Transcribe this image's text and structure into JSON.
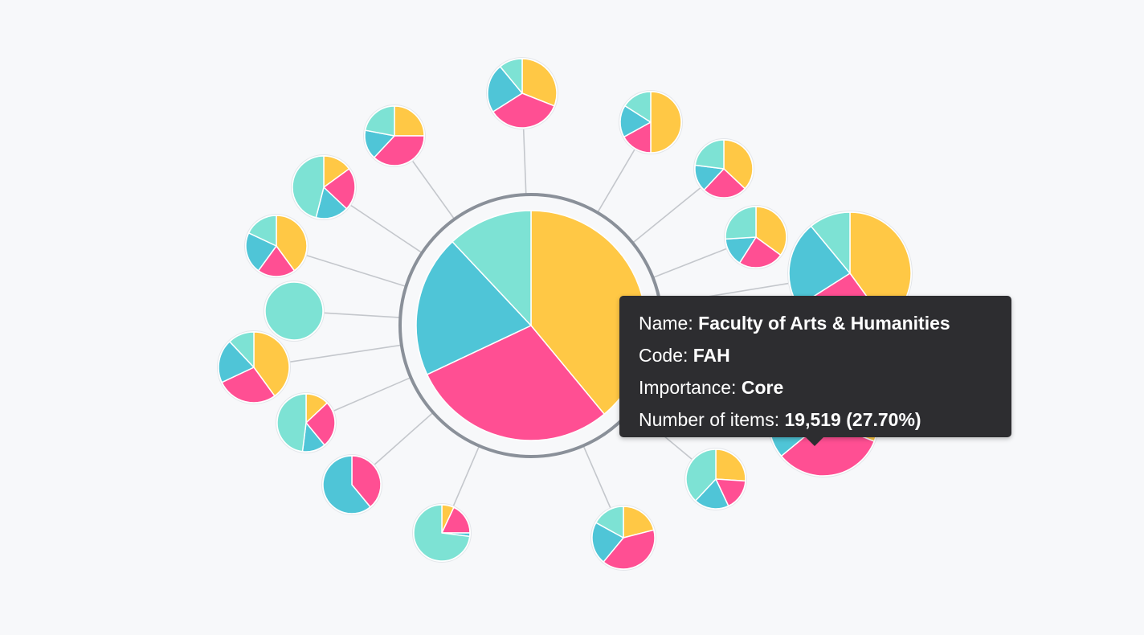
{
  "colors": {
    "yellow": "#ffc845",
    "pink": "#ff4f93",
    "blue": "#4fc5d7",
    "teal": "#7de2d4",
    "link": "#c4c7cc",
    "ring": "#8a9099",
    "tooltip_bg": "#2d2d30"
  },
  "chart_data": {
    "type": "pie",
    "series_order": [
      "yellow",
      "pink",
      "blue",
      "teal"
    ],
    "central": {
      "values": [
        39,
        29,
        20,
        12
      ]
    },
    "satellites": [
      {
        "values": [
          31,
          35,
          23,
          11
        ]
      },
      {
        "values": [
          50,
          17,
          17,
          16
        ]
      },
      {
        "values": [
          37,
          25,
          15,
          23
        ]
      },
      {
        "values": [
          35,
          24,
          15,
          26
        ]
      },
      {
        "values": [
          40,
          26,
          23,
          11
        ]
      },
      {
        "values": [
          0,
          0,
          0,
          100
        ]
      },
      {
        "values": [
          40,
          28,
          20,
          12
        ]
      },
      {
        "values": [
          13,
          26,
          13,
          48
        ]
      },
      {
        "values": [
          0,
          39,
          61,
          0
        ]
      },
      {
        "values": [
          7,
          18,
          2,
          73
        ]
      },
      {
        "values": [
          21,
          40,
          22,
          17
        ]
      },
      {
        "values": [
          26,
          17,
          19,
          38
        ]
      },
      {
        "values": [
          31,
          33,
          9,
          27
        ]
      },
      {
        "values": [
          24,
          25,
          9,
          42
        ]
      },
      {
        "values": [
          25,
          37,
          16,
          22
        ]
      },
      {
        "values": [
          15,
          22,
          17,
          46
        ]
      },
      {
        "values": [
          40,
          20,
          22,
          18
        ]
      },
      {
        "values": [
          30,
          50,
          10,
          10
        ]
      }
    ]
  },
  "tooltip": {
    "name_label": "Name:",
    "name_value": "Faculty of Arts & Humanities",
    "code_label": "Code:",
    "code_value": "FAH",
    "importance_label": "Importance:",
    "importance_value": "Core",
    "items_label": "Number of items:",
    "items_value": "19,519 (27.70%)"
  }
}
